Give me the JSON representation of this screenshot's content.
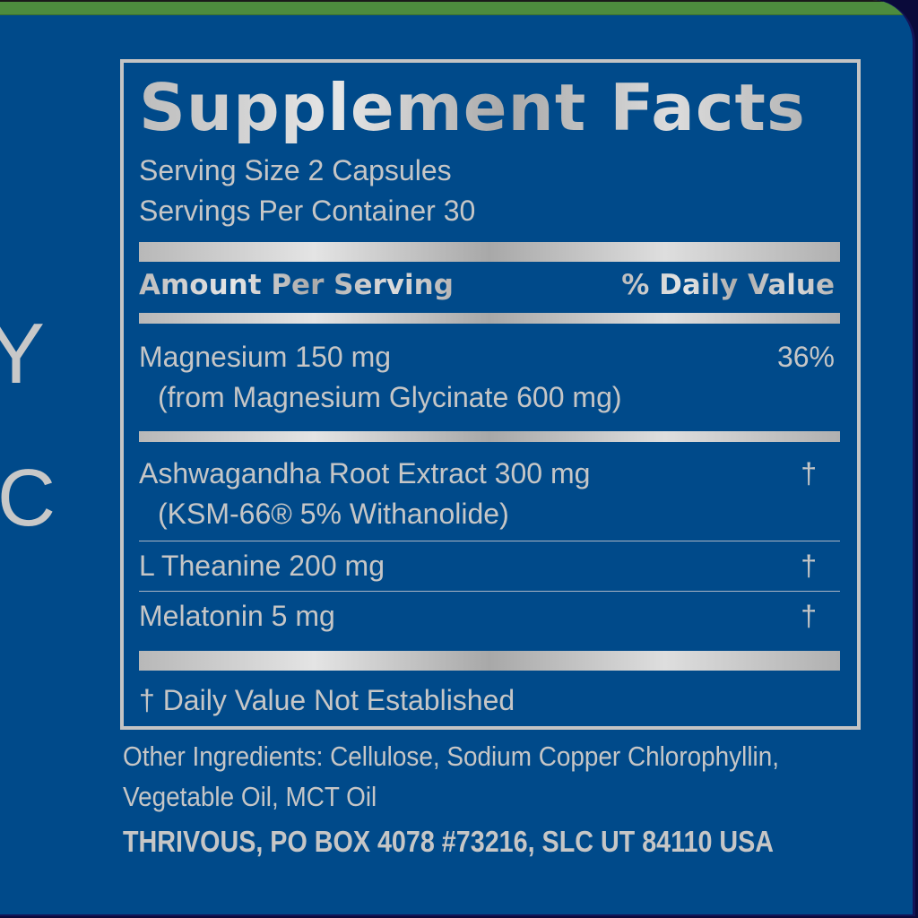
{
  "colors": {
    "background": "#004a8a",
    "top_band": "#4d8c3e",
    "text_silver": "#c8c8c8"
  },
  "left_fragment": {
    "line1": "Y",
    "line2": "IC"
  },
  "facts": {
    "title": "Supplement Facts",
    "serving_size": "Serving Size 2 Capsules",
    "servings_per_container": "Servings Per Container 30",
    "col_amount": "Amount Per Serving",
    "col_dv": "% Daily Value",
    "rows": [
      {
        "name": "Magnesium 150 mg",
        "sub": "(from Magnesium Glycinate 600 mg)",
        "dv": "36%"
      },
      {
        "name": "Ashwagandha Root Extract 300 mg",
        "sub": "(KSM-66® 5% Withanolide)",
        "dv": "†"
      },
      {
        "name": "L Theanine 200 mg",
        "dv": "†"
      },
      {
        "name": "Melatonin 5 mg",
        "dv": "†"
      }
    ],
    "footnote": "† Daily Value Not Established"
  },
  "other_ingredients": {
    "line1": "Other Ingredients: Cellulose, Sodium Copper Chlorophyllin,",
    "line2": "Vegetable Oil, MCT Oil"
  },
  "address": "THRIVOUS, PO BOX 4078 #73216, SLC UT 84110 USA"
}
